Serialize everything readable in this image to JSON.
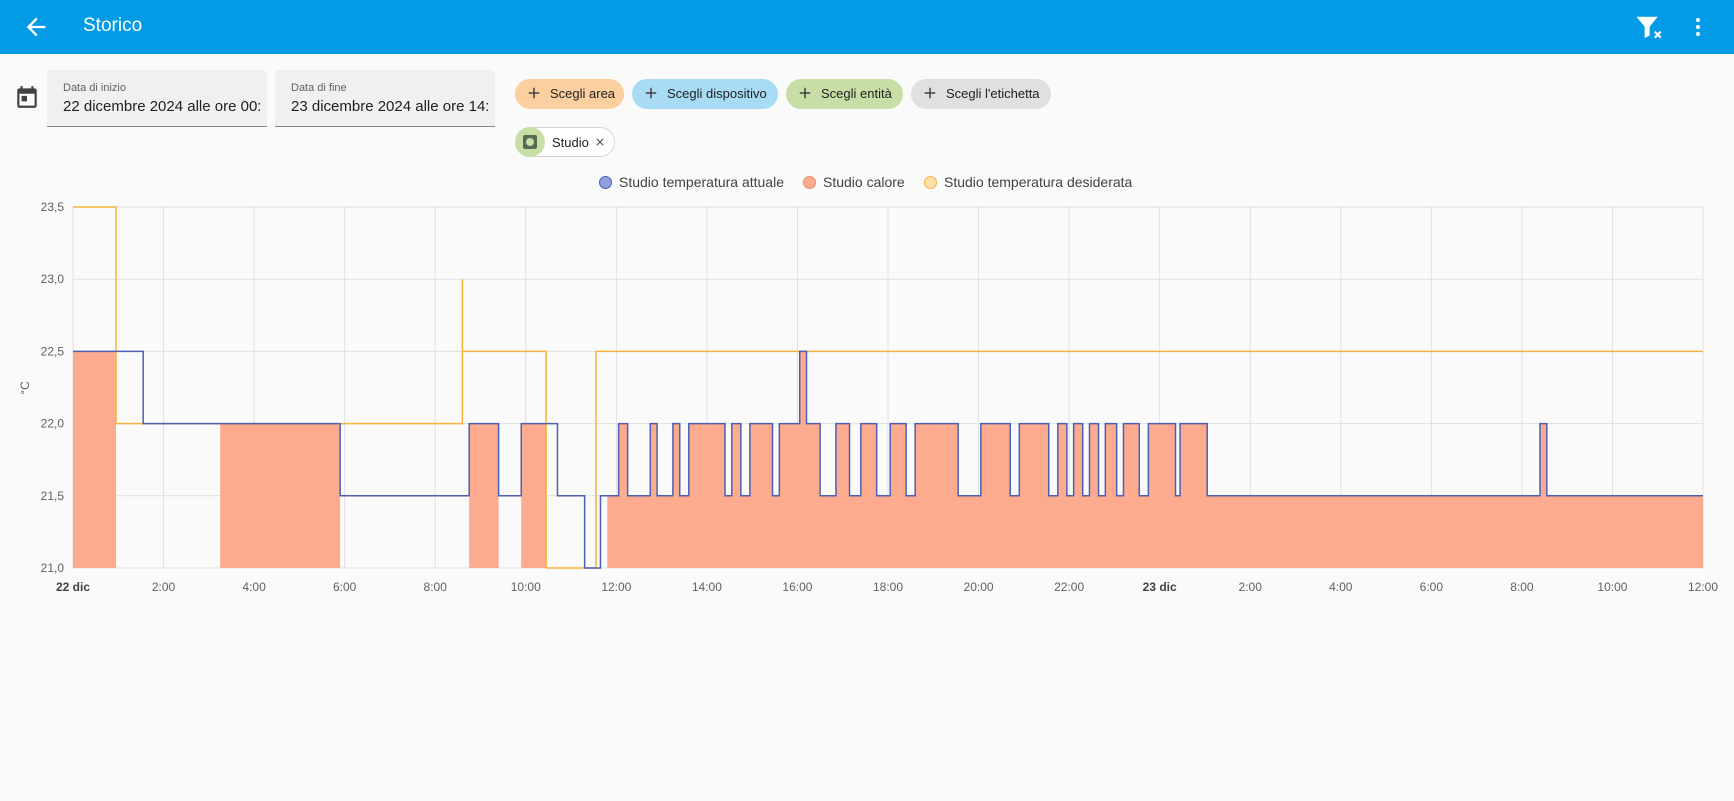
{
  "header": {
    "title": "Storico",
    "back_icon": "arrow-left-icon",
    "filter_clear_icon": "filter-remove-icon",
    "menu_icon": "dots-vertical-icon",
    "bg_color": "#039be5"
  },
  "date_range": {
    "calendar_icon": "calendar-icon",
    "start_label": "Data di inizio",
    "start_value": "22 dicembre 2024 alle ore 00:",
    "end_label": "Data di fine",
    "end_value": "23 dicembre 2024 alle ore 14:"
  },
  "pickers": [
    {
      "label": "Scegli area",
      "color": "#fbcf9f"
    },
    {
      "label": "Scegli dispositivo",
      "color": "#a8dcf5"
    },
    {
      "label": "Scegli entità",
      "color": "#c7dfa7"
    },
    {
      "label": "Scegli l'etichetta",
      "color": "#e0e0e0"
    }
  ],
  "selected": {
    "label": "Studio",
    "icon": "thermostat-icon",
    "remove_icon": "close-icon"
  },
  "chart_data": {
    "type": "line",
    "ylabel": "°C",
    "ylim": [
      21.0,
      23.5
    ],
    "y_ticks": [
      "21,0",
      "21,5",
      "22,0",
      "22,5",
      "23,0",
      "23,5"
    ],
    "x_start_hour": 0,
    "x_end_hour": 36,
    "x_ticks": [
      {
        "h": 0,
        "label": "22 dic",
        "bold": true
      },
      {
        "h": 2,
        "label": "2:00"
      },
      {
        "h": 4,
        "label": "4:00"
      },
      {
        "h": 6,
        "label": "6:00"
      },
      {
        "h": 8,
        "label": "8:00"
      },
      {
        "h": 10,
        "label": "10:00"
      },
      {
        "h": 12,
        "label": "12:00"
      },
      {
        "h": 14,
        "label": "14:00"
      },
      {
        "h": 16,
        "label": "16:00"
      },
      {
        "h": 18,
        "label": "18:00"
      },
      {
        "h": 20,
        "label": "20:00"
      },
      {
        "h": 22,
        "label": "22:00"
      },
      {
        "h": 24,
        "label": "23 dic",
        "bold": true
      },
      {
        "h": 26,
        "label": "2:00"
      },
      {
        "h": 28,
        "label": "4:00"
      },
      {
        "h": 30,
        "label": "6:00"
      },
      {
        "h": 32,
        "label": "8:00"
      },
      {
        "h": 34,
        "label": "10:00"
      },
      {
        "h": 36,
        "label": "12:00"
      }
    ],
    "legend": [
      {
        "name": "Studio temperatura attuale",
        "color": "#4d5fb0",
        "fill": "#8fa0dc"
      },
      {
        "name": "Studio calore",
        "color": "#f38b67",
        "fill": "#fcab8e"
      },
      {
        "name": "Studio temperatura desiderata",
        "color": "#f6b33c",
        "fill": "#fde0a8"
      }
    ],
    "heating_periods": [
      [
        0,
        0.95
      ],
      [
        3.25,
        5.9
      ],
      [
        8.75,
        9.4
      ],
      [
        9.9,
        10.45
      ],
      [
        11.8,
        36
      ]
    ],
    "series": [
      {
        "name": "Studio temperatura attuale",
        "color": "#4d5fb0",
        "points": [
          [
            0,
            22.5
          ],
          [
            1.55,
            22.0
          ],
          [
            5.9,
            21.5
          ],
          [
            8.75,
            22.0
          ],
          [
            9.4,
            21.5
          ],
          [
            9.9,
            22.0
          ],
          [
            10.7,
            21.5
          ],
          [
            11.3,
            21.0
          ],
          [
            11.65,
            21.5
          ],
          [
            12.05,
            22.0
          ],
          [
            12.25,
            21.5
          ],
          [
            12.75,
            22.0
          ],
          [
            12.9,
            21.5
          ],
          [
            13.25,
            22.0
          ],
          [
            13.4,
            21.5
          ],
          [
            13.6,
            22.0
          ],
          [
            14.4,
            21.5
          ],
          [
            14.55,
            22.0
          ],
          [
            14.75,
            21.5
          ],
          [
            14.95,
            22.0
          ],
          [
            15.45,
            21.5
          ],
          [
            15.6,
            22.0
          ],
          [
            16.05,
            22.5
          ],
          [
            16.2,
            22.0
          ],
          [
            16.5,
            21.5
          ],
          [
            16.85,
            22.0
          ],
          [
            17.15,
            21.5
          ],
          [
            17.4,
            22.0
          ],
          [
            17.75,
            21.5
          ],
          [
            18.05,
            22.0
          ],
          [
            18.4,
            21.5
          ],
          [
            18.6,
            22.0
          ],
          [
            19.55,
            21.5
          ],
          [
            20.05,
            22.0
          ],
          [
            20.7,
            21.5
          ],
          [
            20.9,
            22.0
          ],
          [
            21.55,
            21.5
          ],
          [
            21.75,
            22.0
          ],
          [
            21.95,
            21.5
          ],
          [
            22.1,
            22.0
          ],
          [
            22.3,
            21.5
          ],
          [
            22.45,
            22.0
          ],
          [
            22.65,
            21.5
          ],
          [
            22.8,
            22.0
          ],
          [
            23.05,
            21.5
          ],
          [
            23.2,
            22.0
          ],
          [
            23.55,
            21.5
          ],
          [
            23.75,
            22.0
          ],
          [
            24.35,
            21.5
          ],
          [
            24.45,
            22.0
          ],
          [
            25.05,
            21.5
          ],
          [
            32.4,
            22.0
          ],
          [
            32.55,
            21.5
          ],
          [
            36,
            21.5
          ]
        ]
      },
      {
        "name": "Studio temperatura desiderata",
        "color": "#f6b33c",
        "points": [
          [
            0,
            23.5
          ],
          [
            0.95,
            22.0
          ],
          [
            8.6,
            23.0
          ],
          [
            8.6,
            22.5
          ],
          [
            10.45,
            21.0
          ],
          [
            11.55,
            22.5
          ],
          [
            36,
            22.5
          ]
        ]
      }
    ]
  }
}
